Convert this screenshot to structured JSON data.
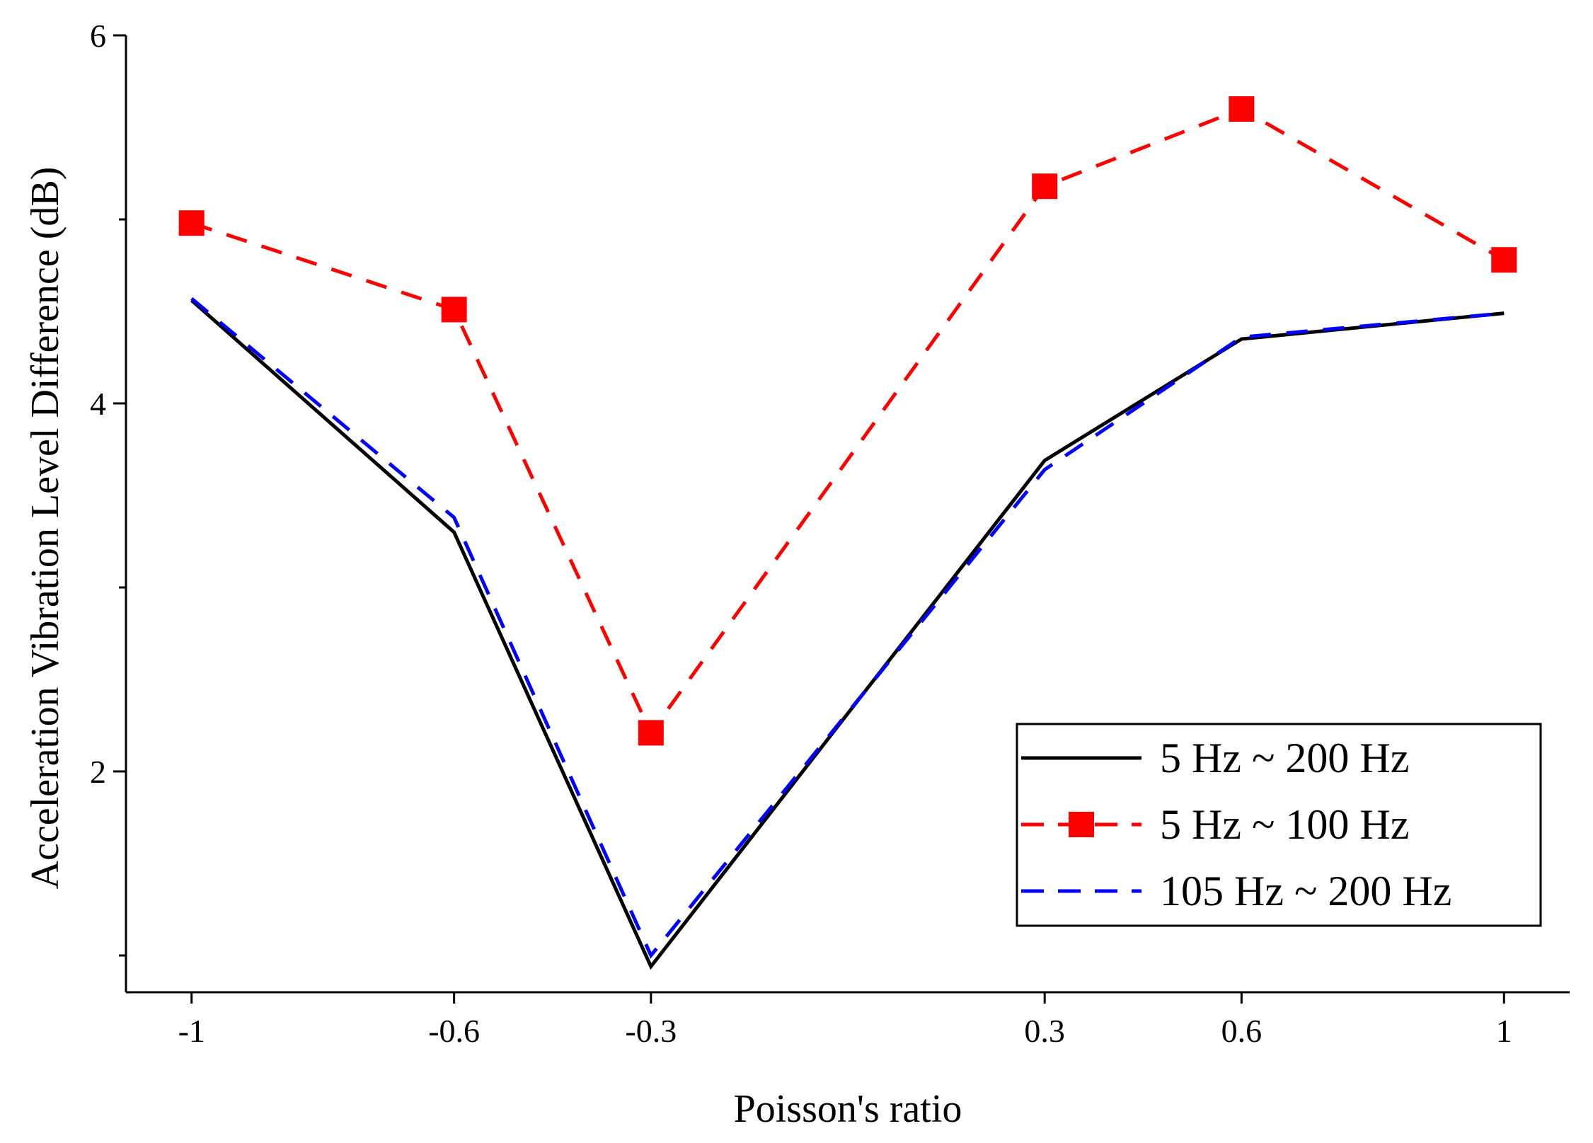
{
  "chart_data": {
    "type": "line",
    "title": "",
    "xlabel": "Poisson's ratio",
    "ylabel": "Acceleration Vibration Level Difference (dB)",
    "x": [
      -1,
      -0.6,
      -0.3,
      0.3,
      0.6,
      1
    ],
    "x_tick_labels": [
      "-1",
      "-0.6",
      "-0.3",
      "0.3",
      "0.6",
      "1"
    ],
    "y_ticks": [
      2,
      4,
      6
    ],
    "y_tick_labels": [
      "2",
      "4",
      "6"
    ],
    "xlim": [
      -1.1,
      1.1
    ],
    "ylim": [
      0.8,
      6
    ],
    "grid": false,
    "legend_position": "bottom-right",
    "series": [
      {
        "name": "5 Hz ~ 200 Hz",
        "values": [
          4.56,
          3.3,
          0.94,
          3.69,
          4.35,
          4.49
        ],
        "color": "#000000",
        "line_style": "solid",
        "marker": "none"
      },
      {
        "name": "5 Hz ~ 100 Hz",
        "values": [
          4.98,
          4.51,
          2.21,
          5.18,
          5.6,
          4.78
        ],
        "color": "#ff0000",
        "line_style": "dashed",
        "marker": "square"
      },
      {
        "name": "105 Hz ~ 200 Hz",
        "values": [
          4.57,
          3.38,
          1.0,
          3.64,
          4.36,
          4.49
        ],
        "color": "#0000ff",
        "line_style": "dashed",
        "marker": "none"
      }
    ]
  }
}
